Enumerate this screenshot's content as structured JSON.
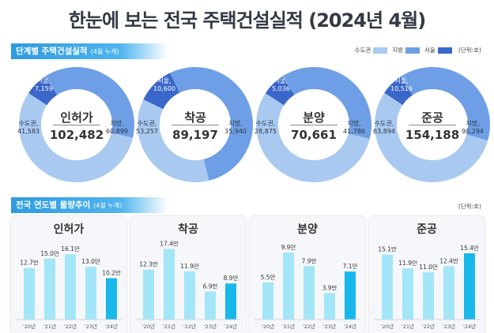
{
  "title": "한눈에 보는 전국 주택건설실적 (2024년 4월)",
  "section1": {
    "label": "단계별 주택건설실적",
    "sub": "(4월 누계)"
  },
  "section2": {
    "label": "전국 연도별 물량추이",
    "sub": "(4월 누계)"
  },
  "legend": [
    {
      "name": "수도권",
      "color": "#a9c9f1"
    },
    {
      "name": "지방",
      "color": "#6e9fe6"
    },
    {
      "name": "서울",
      "color": "#3a67c9"
    }
  ],
  "unit_donut": "(단위:호)",
  "unit_bar": "(단위:호)",
  "chart_data": [
    {
      "type": "pie",
      "title": "인허가",
      "total": "102,482",
      "slices": [
        {
          "name": "서울",
          "value": 7159,
          "label": "서울,\n7,159"
        },
        {
          "name": "수도권",
          "value": 41583,
          "label": "수도권,\n41,583"
        },
        {
          "name": "지방",
          "value": 60899,
          "label": "지방,\n60,899"
        }
      ]
    },
    {
      "type": "pie",
      "title": "착공",
      "total": "89,197",
      "slices": [
        {
          "name": "서울",
          "value": 10600,
          "label": "서울,\n10,600"
        },
        {
          "name": "수도권",
          "value": 53257,
          "label": "수도권,\n53,257"
        },
        {
          "name": "지방",
          "value": 35940,
          "label": "지방,\n35,940"
        }
      ]
    },
    {
      "type": "pie",
      "title": "분양",
      "total": "70,661",
      "slices": [
        {
          "name": "서울",
          "value": 5036,
          "label": "서울,\n5,036"
        },
        {
          "name": "수도권",
          "value": 28875,
          "label": "수도권,\n28,875"
        },
        {
          "name": "지방",
          "value": 41786,
          "label": "지방,\n41,786"
        }
      ]
    },
    {
      "type": "pie",
      "title": "준공",
      "total": "154,188",
      "slices": [
        {
          "name": "서울",
          "value": 10516,
          "label": "서울,\n10,516"
        },
        {
          "name": "수도권",
          "value": 63894,
          "label": "수도권,\n63,894"
        },
        {
          "name": "지방",
          "value": 90294,
          "label": "지방,\n90,294"
        }
      ]
    },
    {
      "type": "bar",
      "title": "인허가",
      "categories": [
        "'20년",
        "'21년",
        "'22년",
        "'23년",
        "'24년"
      ],
      "values": [
        12.7,
        15.0,
        16.1,
        13.0,
        10.2
      ],
      "labels": [
        "12.7만",
        "15.0만",
        "16.1만",
        "13.0만",
        "10.2만"
      ],
      "ylim": [
        0,
        17.5
      ]
    },
    {
      "type": "bar",
      "title": "착공",
      "categories": [
        "'20년",
        "'21년",
        "'22년",
        "'23년",
        "'24년"
      ],
      "values": [
        12.3,
        17.4,
        11.9,
        6.9,
        8.9
      ],
      "labels": [
        "12.3만",
        "17.4만",
        "11.9만",
        "6.9만",
        "8.9만"
      ],
      "ylim": [
        0,
        17.5
      ]
    },
    {
      "type": "bar",
      "title": "분양",
      "categories": [
        "'20년",
        "'21년",
        "'22년",
        "'23년",
        "'24년"
      ],
      "values": [
        5.5,
        9.9,
        7.9,
        3.9,
        7.1
      ],
      "labels": [
        "5.5만",
        "9.9만",
        "7.9만",
        "3.9만",
        "7.1만"
      ],
      "ylim": [
        0,
        10.5
      ]
    },
    {
      "type": "bar",
      "title": "준공",
      "categories": [
        "'20년",
        "'21년",
        "'22년",
        "'23년",
        "'24년"
      ],
      "values": [
        15.1,
        11.9,
        11.0,
        12.4,
        15.4
      ],
      "labels": [
        "15.1만",
        "11.9만",
        "11.0만",
        "12.4만",
        "15.4만"
      ],
      "ylim": [
        0,
        16.5
      ]
    }
  ],
  "colors": {
    "seoul": "#3a67c9",
    "metro": "#6e9fe6",
    "region": "#a9c9f1",
    "bar_past": "#a3e6f7",
    "bar_current": "#19b8ea",
    "section_bar": "#2e9be0"
  }
}
